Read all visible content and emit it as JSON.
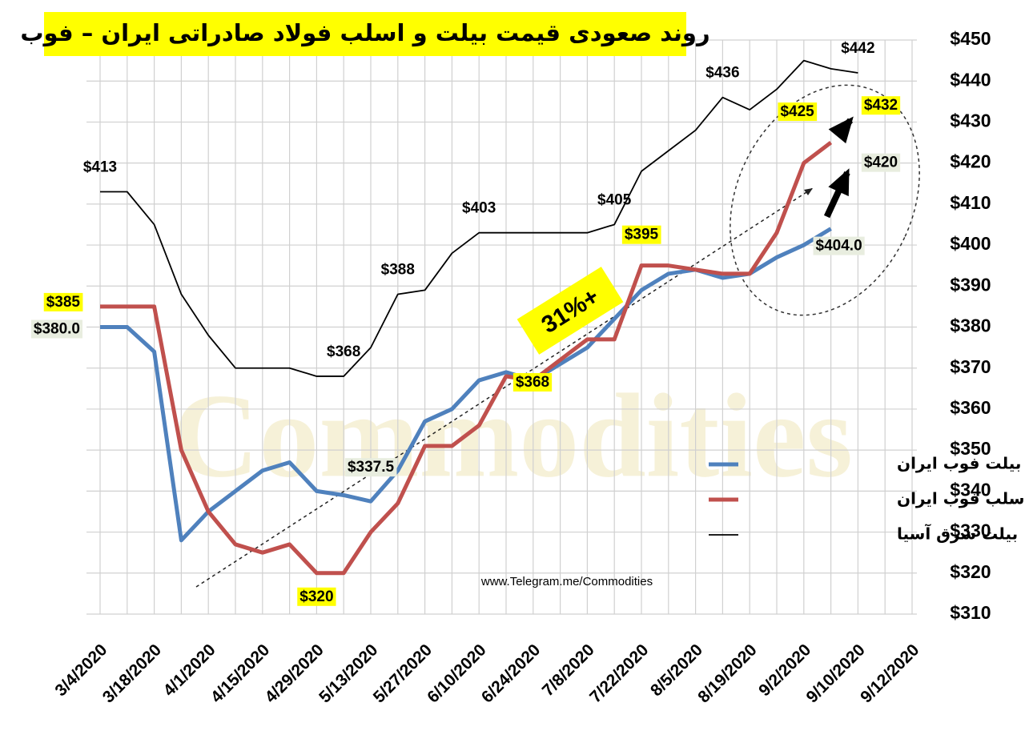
{
  "chart_data": {
    "type": "line",
    "title": "روند صعودی قیمت بیلت و اسلب فولاد صادراتی ایران – فوب",
    "source": "www.Telegram.me/Commodities",
    "watermark": "Commodities",
    "categories": [
      "3/4/2020",
      null,
      "3/18/2020",
      null,
      "4/1/2020",
      null,
      "4/15/2020",
      null,
      "4/29/2020",
      null,
      "5/13/2020",
      null,
      "5/27/2020",
      null,
      "6/10/2020",
      null,
      "6/24/2020",
      null,
      "7/8/2020",
      null,
      "7/22/2020",
      null,
      "8/5/2020",
      null,
      "8/19/2020",
      null,
      "9/2/2020",
      null,
      "9/10/2020",
      null,
      "9/12/2020"
    ],
    "series": [
      {
        "name": "بیلت فوب ایران",
        "color": "#4f81bd",
        "values": [
          380,
          380,
          374,
          328,
          335,
          340,
          345,
          347,
          340,
          339,
          337.5,
          345,
          357,
          360,
          367,
          369,
          367,
          371,
          375,
          382,
          389,
          393,
          394,
          392,
          393,
          397,
          400,
          404,
          null,
          null,
          null
        ],
        "value_labels": [
          "$380.0",
          null,
          null,
          null,
          null,
          null,
          null,
          null,
          null,
          null,
          "$337.5",
          null,
          null,
          null,
          null,
          null,
          null,
          null,
          null,
          null,
          null,
          null,
          null,
          null,
          null,
          null,
          null,
          "$404.0",
          null,
          null,
          null
        ]
      },
      {
        "name": "اسلب فوب ایران",
        "color": "#c0504d",
        "values": [
          385,
          385,
          385,
          350,
          335,
          327,
          325,
          327,
          320,
          320,
          330,
          337,
          351,
          351,
          356,
          368,
          367,
          372,
          377,
          377,
          395,
          395,
          394,
          393,
          393,
          403,
          420,
          425,
          null,
          null,
          null
        ],
        "value_labels": [
          "$385",
          null,
          null,
          null,
          null,
          null,
          null,
          null,
          "$320",
          null,
          null,
          null,
          null,
          null,
          null,
          "$368",
          null,
          null,
          null,
          null,
          "$395",
          null,
          null,
          null,
          null,
          null,
          null,
          "$425",
          null,
          null,
          null
        ]
      },
      {
        "name": "بیلت شرق آسیا",
        "color": "#000000",
        "values": [
          413,
          413,
          405,
          388,
          378,
          370,
          370,
          370,
          368,
          368,
          375,
          388,
          389,
          398,
          403,
          403,
          403,
          403,
          403,
          405,
          418,
          423,
          428,
          436,
          433,
          438,
          445,
          443,
          442,
          null,
          null
        ],
        "value_labels": [
          "$413",
          null,
          null,
          null,
          null,
          null,
          null,
          null,
          null,
          "$368",
          null,
          "$388",
          null,
          null,
          "$403",
          null,
          null,
          null,
          null,
          "$405",
          null,
          null,
          null,
          "$436",
          null,
          null,
          null,
          null,
          "$442",
          null,
          null
        ]
      }
    ],
    "annotations": [
      {
        "text": "$432",
        "value": 432
      },
      {
        "text": "$420",
        "value": 420
      },
      {
        "text": "31%+"
      }
    ],
    "ylim": [
      310,
      450
    ],
    "yticks": [
      {
        "value": 310,
        "label": "$310"
      },
      {
        "value": 320,
        "label": "$320"
      },
      {
        "value": 330,
        "label": "$330"
      },
      {
        "value": 340,
        "label": "$340"
      },
      {
        "value": 350,
        "label": "$350"
      },
      {
        "value": 360,
        "label": "$360"
      },
      {
        "value": 370,
        "label": "$370"
      },
      {
        "value": 380,
        "label": "$380"
      },
      {
        "value": 390,
        "label": "$390"
      },
      {
        "value": 400,
        "label": "$400"
      },
      {
        "value": 410,
        "label": "$410"
      },
      {
        "value": 420,
        "label": "$420"
      },
      {
        "value": 430,
        "label": "$430"
      },
      {
        "value": 440,
        "label": "$440"
      },
      {
        "value": 450,
        "label": "$450"
      }
    ],
    "grid": true,
    "legend": "lower right"
  }
}
